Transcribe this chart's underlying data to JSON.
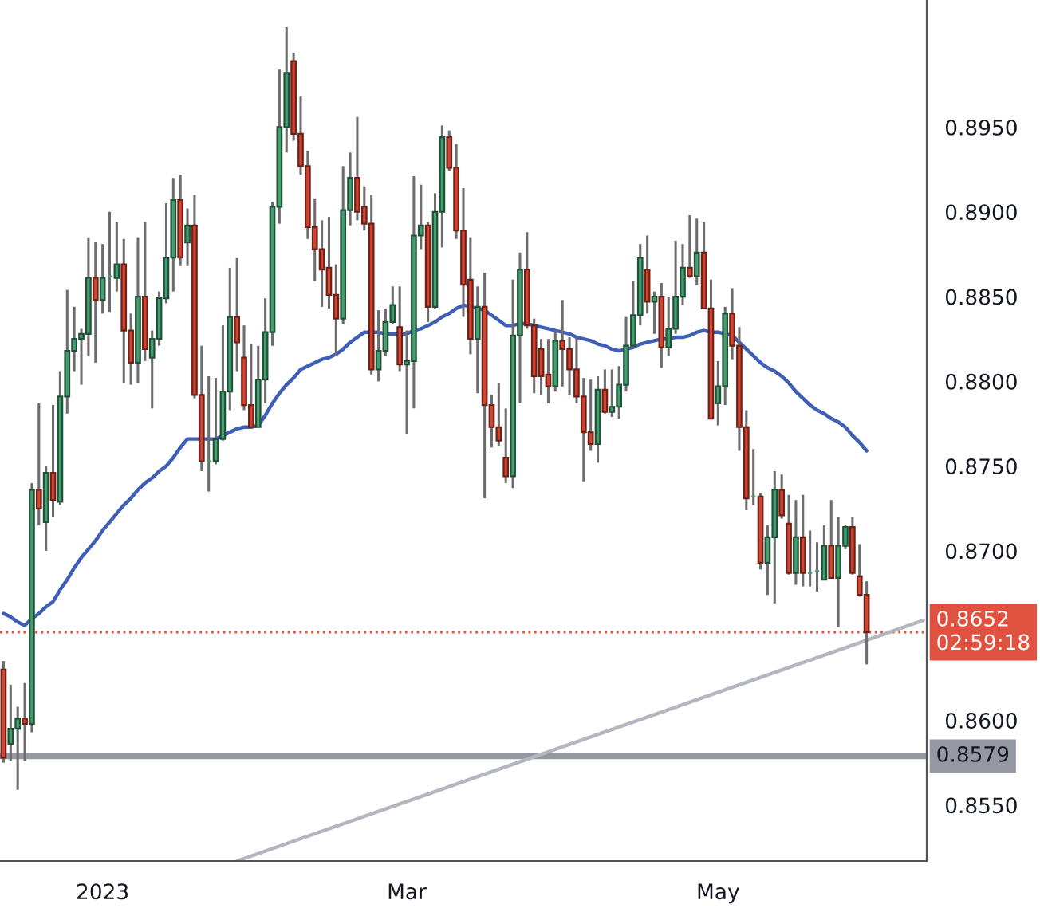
{
  "chart_data": {
    "type": "candlestick",
    "categories": [
      null,
      null,
      null,
      null,
      null,
      null,
      null,
      null,
      null,
      null,
      null,
      null,
      null,
      null,
      "2023",
      null,
      null,
      null,
      null,
      null,
      null,
      null,
      null,
      null,
      null,
      null,
      null,
      null,
      null,
      null,
      null,
      null,
      null,
      null,
      null,
      null,
      null,
      null,
      null,
      null,
      null,
      null,
      null,
      null,
      null,
      null,
      null,
      null,
      null,
      null,
      null,
      null,
      null,
      null,
      null,
      null,
      null,
      "Mar",
      null,
      null,
      null,
      null,
      null,
      null,
      null,
      null,
      null,
      null,
      null,
      null,
      null,
      null,
      null,
      null,
      null,
      null,
      null,
      null,
      null,
      null,
      null,
      null,
      null,
      null,
      null,
      null,
      null,
      null,
      null,
      null,
      null,
      null,
      null,
      null,
      null,
      null,
      null,
      null,
      null,
      null,
      null,
      "May",
      null,
      null,
      null,
      null,
      null,
      null,
      null,
      null,
      null,
      null,
      null,
      null,
      null,
      null,
      null,
      null,
      null,
      null,
      null,
      null,
      null,
      null,
      null,
      null,
      null,
      null,
      null,
      null,
      null
    ],
    "colors": [
      "#d6432f",
      "#43a06f",
      "#43a06f",
      "#d6432f",
      "#43a06f",
      "#d6432f",
      "#43a06f",
      "#d6432f",
      "#43a06f",
      "#43a06f",
      "#43a06f",
      "#43a06f",
      "#43a06f",
      "#d6432f",
      "#43a06f",
      "#43a06f",
      "#43a06f",
      "#d6432f",
      "#d6432f",
      "#43a06f",
      "#d6432f",
      "#43a06f",
      "#43a06f",
      "#43a06f",
      "#43a06f",
      "#d6432f",
      "#43a06f",
      "#d6432f",
      "#d6432f",
      "#43a06f",
      "#43a06f",
      "#43a06f",
      "#43a06f",
      "#d6432f",
      "#d6432f",
      "#d6432f",
      "#43a06f",
      "#43a06f",
      "#43a06f",
      "#43a06f",
      "#43a06f",
      "#d6432f",
      "#d6432f",
      "#d6432f",
      "#d6432f",
      "#d6432f",
      "#d6432f",
      "#d6432f",
      "#43a06f",
      "#43a06f",
      "#d6432f",
      "#d6432f",
      "#d6432f",
      "#43a06f",
      "#43a06f",
      "#43a06f",
      "#d6432f",
      "#43a06f",
      "#43a06f",
      "#43a06f",
      "#d6432f",
      "#43a06f",
      "#43a06f",
      "#d6432f",
      "#d6432f",
      "#d6432f",
      "#d6432f",
      "#43a06f",
      "#d6432f",
      "#d6432f",
      "#d6432f",
      "#d6432f",
      "#43a06f",
      "#43a06f",
      "#d6432f",
      "#d6432f",
      "#d6432f",
      "#d6432f",
      "#43a06f",
      "#d6432f",
      "#d6432f",
      "#d6432f",
      "#d6432f",
      "#d6432f",
      "#43a06f",
      "#d6432f",
      "#43a06f",
      "#43a06f",
      "#43a06f",
      "#43a06f",
      "#43a06f",
      "#d6432f",
      "#43a06f",
      "#d6432f",
      "#43a06f",
      "#43a06f",
      "#43a06f",
      "#d6432f",
      "#43a06f",
      "#d6432f",
      "#d6432f",
      "#43a06f",
      "#43a06f",
      "#d6432f",
      "#d6432f",
      "#d6432f",
      "#43a06f",
      "#d6432f",
      "#43a06f",
      "#43a06f",
      "#d6432f",
      "#d6432f",
      "#43a06f",
      "#d6432f",
      "#43a06f",
      "#43a06f",
      "#43a06f",
      "#d6432f",
      "#43a06f",
      "#43a06f",
      "#d6432f",
      "#d6432f",
      "#d6432f",
      null,
      null,
      null,
      null,
      null,
      null,
      null,
      null
    ],
    "ohlc": [
      [
        0.863,
        0.8635,
        0.8575,
        0.8578
      ],
      [
        0.8586,
        0.8621,
        0.8576,
        0.8595
      ],
      [
        0.8595,
        0.8608,
        0.8559,
        0.8601
      ],
      [
        0.8601,
        0.8622,
        0.8576,
        0.8598
      ],
      [
        0.8598,
        0.874,
        0.8593,
        0.8736
      ],
      [
        0.8736,
        0.8787,
        0.8715,
        0.8725
      ],
      [
        0.8717,
        0.875,
        0.87,
        0.8746
      ],
      [
        0.8746,
        0.8786,
        0.872,
        0.873
      ],
      [
        0.8729,
        0.8806,
        0.8727,
        0.8791
      ],
      [
        0.8791,
        0.8854,
        0.8781,
        0.8818
      ],
      [
        0.8818,
        0.8844,
        0.8806,
        0.8825
      ],
      [
        0.8825,
        0.8831,
        0.8798,
        0.8828
      ],
      [
        0.8828,
        0.8885,
        0.8815,
        0.8861
      ],
      [
        0.8861,
        0.8882,
        0.8811,
        0.8848
      ],
      [
        0.8848,
        0.8881,
        0.884,
        0.8861
      ],
      [
        0.8862,
        0.89,
        0.8841,
        0.8862
      ],
      [
        0.8861,
        0.8894,
        0.8853,
        0.8869
      ],
      [
        0.8869,
        0.8884,
        0.8799,
        0.883
      ],
      [
        0.883,
        0.884,
        0.8798,
        0.8811
      ],
      [
        0.8811,
        0.8885,
        0.8799,
        0.885
      ],
      [
        0.885,
        0.8894,
        0.8812,
        0.8819
      ],
      [
        0.8814,
        0.883,
        0.8784,
        0.8825
      ],
      [
        0.8825,
        0.8853,
        0.8821,
        0.8849
      ],
      [
        0.8849,
        0.8905,
        0.8846,
        0.8873
      ],
      [
        0.8873,
        0.892,
        0.8853,
        0.8907
      ],
      [
        0.8907,
        0.8922,
        0.8868,
        0.8873
      ],
      [
        0.8882,
        0.8902,
        0.8868,
        0.8892
      ],
      [
        0.8892,
        0.891,
        0.879,
        0.8792
      ],
      [
        0.8792,
        0.8821,
        0.8747,
        0.8753
      ],
      [
        0.8753,
        0.8803,
        0.8735,
        0.8753
      ],
      [
        0.8753,
        0.8802,
        0.8751,
        0.8766
      ],
      [
        0.8766,
        0.8833,
        0.8765,
        0.8794
      ],
      [
        0.8794,
        0.8867,
        0.8783,
        0.8838
      ],
      [
        0.8838,
        0.8873,
        0.8806,
        0.8823
      ],
      [
        0.8814,
        0.8833,
        0.8783,
        0.8786
      ],
      [
        0.8786,
        0.8822,
        0.8773,
        0.8773
      ],
      [
        0.8773,
        0.8821,
        0.8773,
        0.8801
      ],
      [
        0.8801,
        0.8849,
        0.8787,
        0.8829
      ],
      [
        0.8829,
        0.8906,
        0.8821,
        0.8903
      ],
      [
        0.8903,
        0.8984,
        0.8893,
        0.895
      ],
      [
        0.895,
        0.9009,
        0.8935,
        0.8982
      ],
      [
        0.8989,
        0.8994,
        0.8942,
        0.8946
      ],
      [
        0.8946,
        0.8968,
        0.8922,
        0.8927
      ],
      [
        0.8927,
        0.8936,
        0.8884,
        0.8891
      ],
      [
        0.8891,
        0.8908,
        0.8859,
        0.8878
      ],
      [
        0.8878,
        0.8895,
        0.8844,
        0.8866
      ],
      [
        0.8867,
        0.8897,
        0.8843,
        0.8851
      ],
      [
        0.8851,
        0.8869,
        0.8815,
        0.8837
      ],
      [
        0.8837,
        0.8927,
        0.8834,
        0.8901
      ],
      [
        0.8901,
        0.8935,
        0.8892,
        0.892
      ],
      [
        0.892,
        0.8956,
        0.8895,
        0.89
      ],
      [
        0.8903,
        0.8915,
        0.8889,
        0.8893
      ],
      [
        0.8893,
        0.891,
        0.8804,
        0.8807
      ],
      [
        0.8807,
        0.8842,
        0.88,
        0.8818
      ],
      [
        0.8818,
        0.8843,
        0.8815,
        0.8835
      ],
      [
        0.8835,
        0.8856,
        0.8834,
        0.8845
      ],
      [
        0.8832,
        0.8856,
        0.8806,
        0.881
      ],
      [
        0.881,
        0.883,
        0.8769,
        0.8812
      ],
      [
        0.8812,
        0.8921,
        0.8784,
        0.8886
      ],
      [
        0.8886,
        0.8916,
        0.8878,
        0.8892
      ],
      [
        0.8892,
        0.8894,
        0.8835,
        0.8844
      ],
      [
        0.8844,
        0.8911,
        0.8843,
        0.89
      ],
      [
        0.89,
        0.8951,
        0.8879,
        0.8944
      ],
      [
        0.8944,
        0.8948,
        0.8924,
        0.8926
      ],
      [
        0.8926,
        0.894,
        0.8884,
        0.8889
      ],
      [
        0.8889,
        0.8914,
        0.8838,
        0.8857
      ],
      [
        0.886,
        0.8885,
        0.8816,
        0.8825
      ],
      [
        0.8825,
        0.8856,
        0.8793,
        0.8844
      ],
      [
        0.8844,
        0.8864,
        0.8731,
        0.8786
      ],
      [
        0.8786,
        0.8792,
        0.8761,
        0.8773
      ],
      [
        0.8773,
        0.8799,
        0.8762,
        0.8765
      ],
      [
        0.8755,
        0.8784,
        0.874,
        0.8744
      ],
      [
        0.8744,
        0.886,
        0.8737,
        0.8827
      ],
      [
        0.8827,
        0.8876,
        0.8787,
        0.8866
      ],
      [
        0.8866,
        0.8888,
        0.8831,
        0.8833
      ],
      [
        0.8833,
        0.8837,
        0.8793,
        0.8803
      ],
      [
        0.8819,
        0.8825,
        0.8792,
        0.8803
      ],
      [
        0.8804,
        0.8825,
        0.8787,
        0.8797
      ],
      [
        0.8797,
        0.883,
        0.8794,
        0.8824
      ],
      [
        0.8824,
        0.8848,
        0.8797,
        0.8819
      ],
      [
        0.8819,
        0.8826,
        0.8792,
        0.8807
      ],
      [
        0.8807,
        0.8826,
        0.8787,
        0.8791
      ],
      [
        0.8791,
        0.8802,
        0.8741,
        0.877
      ],
      [
        0.877,
        0.8801,
        0.8759,
        0.8763
      ],
      [
        0.8763,
        0.8803,
        0.8752,
        0.8795
      ],
      [
        0.8795,
        0.8807,
        0.8781,
        0.8782
      ],
      [
        0.8782,
        0.8807,
        0.8779,
        0.8785
      ],
      [
        0.8785,
        0.8809,
        0.8778,
        0.8798
      ],
      [
        0.8798,
        0.8838,
        0.8794,
        0.8821
      ],
      [
        0.8821,
        0.8859,
        0.882,
        0.8839
      ],
      [
        0.8839,
        0.8881,
        0.8833,
        0.8873
      ],
      [
        0.8866,
        0.8886,
        0.884,
        0.8847
      ],
      [
        0.8847,
        0.8853,
        0.8828,
        0.885
      ],
      [
        0.885,
        0.8858,
        0.8808,
        0.882
      ],
      [
        0.882,
        0.885,
        0.8815,
        0.8831
      ],
      [
        0.8831,
        0.8883,
        0.8828,
        0.885
      ],
      [
        0.885,
        0.8881,
        0.8845,
        0.8867
      ],
      [
        0.8867,
        0.8898,
        0.8861,
        0.8862
      ],
      [
        0.8862,
        0.8896,
        0.8857,
        0.8876
      ],
      [
        0.8876,
        0.8894,
        0.8843,
        0.8843
      ],
      [
        0.8843,
        0.886,
        0.8778,
        0.8778
      ],
      [
        0.8787,
        0.8812,
        0.8774,
        0.8797
      ],
      [
        0.8797,
        0.8844,
        0.8786,
        0.884
      ],
      [
        0.884,
        0.8855,
        0.8813,
        0.8821
      ],
      [
        0.8821,
        0.8832,
        0.8759,
        0.8773
      ],
      [
        0.8773,
        0.8783,
        0.8724,
        0.8731
      ],
      [
        0.8732,
        0.876,
        0.8727,
        0.8732
      ],
      [
        0.8732,
        0.8734,
        0.8689,
        0.8693
      ],
      [
        0.8693,
        0.8715,
        0.8674,
        0.8708
      ],
      [
        0.8708,
        0.8747,
        0.8669,
        0.8736
      ],
      [
        0.8736,
        0.8745,
        0.8719,
        0.8721
      ],
      [
        0.8716,
        0.8733,
        0.8686,
        0.8687
      ],
      [
        0.8687,
        0.873,
        0.868,
        0.8708
      ],
      [
        0.8708,
        0.8733,
        0.8679,
        0.8687
      ],
      [
        0.8687,
        0.8712,
        0.8679,
        0.8687
      ],
      [
        0.8688,
        0.8705,
        0.8676,
        0.8688
      ],
      [
        0.8683,
        0.8715,
        0.8683,
        0.8703
      ],
      [
        0.8703,
        0.873,
        0.8684,
        0.8684
      ],
      [
        0.8684,
        0.872,
        0.8655,
        0.8703
      ],
      [
        0.8703,
        0.8715,
        0.8701,
        0.8714
      ],
      [
        0.8714,
        0.872,
        0.8686,
        0.8687
      ],
      [
        0.8685,
        0.8704,
        0.8673,
        0.8674
      ],
      [
        0.8674,
        0.8682,
        0.8633,
        0.8652
      ],
      null,
      null,
      null,
      null,
      null,
      null,
      null,
      null
    ],
    "series": [
      {
        "type": "line",
        "color": "#3f5fb7",
        "values": [
          0.8663,
          0.8661,
          0.8658,
          0.8656,
          0.866,
          0.8663,
          0.8667,
          0.867,
          0.8677,
          0.8683,
          0.869,
          0.8696,
          0.8701,
          0.8706,
          0.8712,
          0.8717,
          0.8722,
          0.8727,
          0.8731,
          0.8736,
          0.874,
          0.8743,
          0.8747,
          0.875,
          0.8755,
          0.8761,
          0.8766,
          0.8766,
          0.8766,
          0.8766,
          0.8766,
          0.8768,
          0.877,
          0.8772,
          0.8773,
          0.8773,
          0.8774,
          0.878,
          0.8787,
          0.8793,
          0.8798,
          0.8802,
          0.8807,
          0.8809,
          0.8811,
          0.8813,
          0.8814,
          0.8816,
          0.8819,
          0.8823,
          0.8826,
          0.8829,
          0.8829,
          0.8829,
          0.8828,
          0.8828,
          0.8828,
          0.8828,
          0.883,
          0.8831,
          0.8833,
          0.8835,
          0.8838,
          0.884,
          0.8843,
          0.8845,
          0.8844,
          0.8843,
          0.8842,
          0.8839,
          0.8836,
          0.8833,
          0.8833,
          0.8834,
          0.8834,
          0.8833,
          0.8832,
          0.8831,
          0.883,
          0.8829,
          0.8828,
          0.8826,
          0.8825,
          0.8824,
          0.8822,
          0.8821,
          0.8819,
          0.8818,
          0.8819,
          0.882,
          0.8822,
          0.8823,
          0.8824,
          0.8825,
          0.8825,
          0.8826,
          0.8826,
          0.8827,
          0.8829,
          0.883,
          0.8829,
          0.8829,
          0.8828,
          0.8827,
          0.8823,
          0.8819,
          0.8815,
          0.8811,
          0.8808,
          0.8806,
          0.8803,
          0.8799,
          0.8794,
          0.879,
          0.8786,
          0.8783,
          0.8781,
          0.8778,
          0.8776,
          0.8773,
          0.8768,
          0.8764,
          0.8759,
          null,
          null,
          null,
          null,
          null,
          null,
          null,
          null
        ]
      },
      {
        "type": "line",
        "color": "#b4b6c0",
        "values": [
          null,
          null,
          null,
          null,
          null,
          null,
          null,
          null,
          null,
          null,
          null,
          null,
          null,
          null,
          null,
          null,
          null,
          null,
          null,
          null,
          null,
          null,
          null,
          null,
          null,
          null,
          null,
          null,
          null,
          null,
          null,
          null,
          null,
          0.8517,
          null,
          null,
          null,
          null,
          null,
          null,
          null,
          null,
          null,
          null,
          null,
          null,
          null,
          null,
          null,
          null,
          null,
          null,
          null,
          null,
          null,
          null,
          null,
          null,
          null,
          null,
          null,
          null,
          null,
          null,
          null,
          null,
          null,
          null,
          null,
          null,
          null,
          null,
          null,
          null,
          null,
          null,
          null,
          null,
          null,
          null,
          null,
          null,
          null,
          null,
          null,
          null,
          null,
          null,
          null,
          null,
          null,
          null,
          null,
          null,
          null,
          null,
          null,
          null,
          null,
          null,
          null,
          null,
          null,
          null,
          null,
          null,
          null,
          null,
          null,
          null,
          null,
          null,
          null,
          null,
          null,
          null,
          null,
          null,
          null,
          null,
          null,
          null,
          null,
          null,
          null,
          null,
          null,
          null,
          null,
          null,
          0.8659
        ]
      }
    ],
    "ylim": [
      0.8517,
      0.9025
    ],
    "yticks": [
      {
        "value": 0.855,
        "label": "0.8550"
      },
      {
        "value": 0.86,
        "label": "0.8600"
      },
      {
        "value": 0.87,
        "label": "0.8700"
      },
      {
        "value": 0.875,
        "label": "0.8750"
      },
      {
        "value": 0.88,
        "label": "0.8800"
      },
      {
        "value": 0.885,
        "label": "0.8850"
      },
      {
        "value": 0.89,
        "label": "0.8900"
      },
      {
        "value": 0.895,
        "label": "0.8950"
      }
    ],
    "ref_lines": [
      {
        "axis": "y",
        "value": 0.8652,
        "label": "0.8652\n02:59:18",
        "color": "#e0523f",
        "line_style": "dotted"
      },
      {
        "axis": "y",
        "value": 0.8579,
        "label": "0.8579",
        "color": "#9598a1",
        "line_style": "solid"
      }
    ],
    "grid": false
  }
}
